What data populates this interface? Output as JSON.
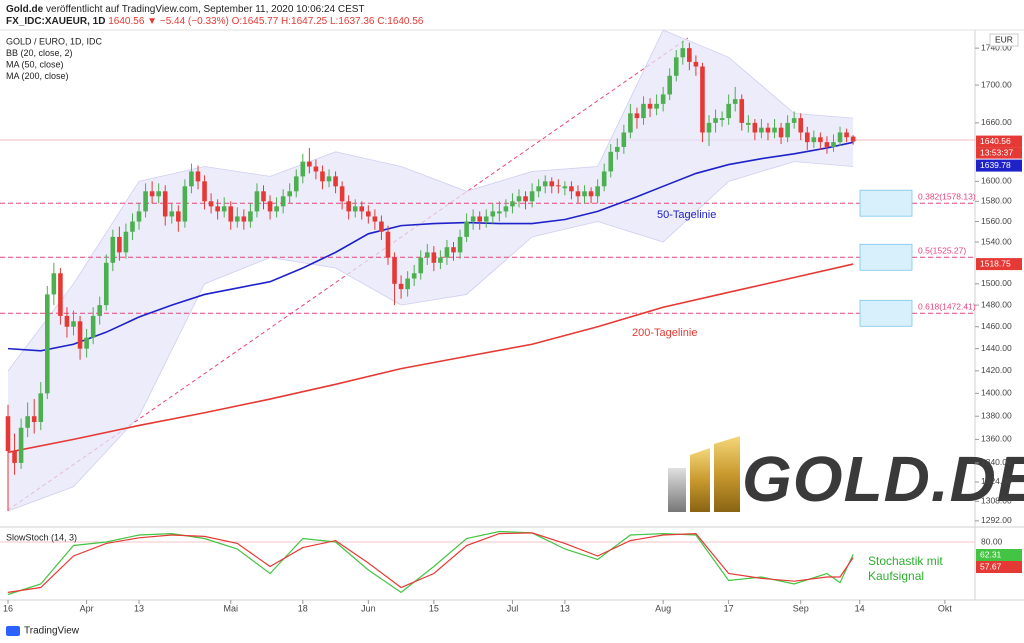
{
  "header": {
    "publisher": "Gold.de",
    "published": "veröffentlicht auf TradingView.com, September 11, 2020 10:06:24 CEST",
    "symbol": "FX_IDC:XAUEUR, 1D",
    "change": "1640.56 ▼ −5.44 (−0.33%)",
    "ohlc": "O:1645.77 H:1647.25 L:1637.36 C:1640.56"
  },
  "footer": "TradingView",
  "logo": "GOLD.DE",
  "chart_data": [
    {
      "type": "candlestick",
      "title": "GOLD / EURO, 1D, IDC",
      "currency": "EUR",
      "countdown": "13:53:37",
      "up_color": "#4caf50",
      "down_color": "#e53935",
      "log": true,
      "grid": false,
      "xlim": [
        -1.22,
        147.6
      ],
      "ylim": [
        1287,
        1760
      ],
      "xticks": [
        {
          "value": 0,
          "label": "16"
        },
        {
          "value": 12,
          "label": "Apr"
        },
        {
          "value": 20,
          "label": "13"
        },
        {
          "value": 34,
          "label": "Mai"
        },
        {
          "value": 45,
          "label": "18"
        },
        {
          "value": 55,
          "label": "Jun"
        },
        {
          "value": 65,
          "label": "15"
        },
        {
          "value": 77,
          "label": "Jul"
        },
        {
          "value": 85,
          "label": "13"
        },
        {
          "value": 100,
          "label": "Aug"
        },
        {
          "value": 110,
          "label": "17"
        },
        {
          "value": 121,
          "label": "Sep"
        },
        {
          "value": 130,
          "label": "14"
        },
        {
          "value": 143,
          "label": "Okt"
        }
      ],
      "yticks": [
        {
          "value": 1740,
          "label": "1740.00"
        },
        {
          "value": 1700,
          "label": "1700.00"
        },
        {
          "value": 1660,
          "label": "1660.00"
        },
        {
          "value": 1600,
          "label": "1600.00"
        },
        {
          "value": 1580,
          "label": "1580.00"
        },
        {
          "value": 1560,
          "label": "1560.00"
        },
        {
          "value": 1540,
          "label": "1540.00"
        },
        {
          "value": 1500,
          "label": "1500.00"
        },
        {
          "value": 1480,
          "label": "1480.00"
        },
        {
          "value": 1460,
          "label": "1460.00"
        },
        {
          "value": 1440,
          "label": "1440.00"
        },
        {
          "value": 1420,
          "label": "1420.00"
        },
        {
          "value": 1400,
          "label": "1400.00"
        },
        {
          "value": 1380,
          "label": "1380.00"
        },
        {
          "value": 1360,
          "label": "1360.00"
        },
        {
          "value": 1340,
          "label": "1340.00"
        },
        {
          "value": 1324,
          "label": "1324.00"
        },
        {
          "value": 1308,
          "label": "1308.00"
        },
        {
          "value": 1292,
          "label": "1292.00"
        }
      ],
      "ohlc": [
        [
          1380,
          1390,
          1300,
          1350
        ],
        [
          1350,
          1365,
          1330,
          1340
        ],
        [
          1340,
          1378,
          1335,
          1370
        ],
        [
          1370,
          1392,
          1362,
          1380
        ],
        [
          1380,
          1395,
          1365,
          1375
        ],
        [
          1375,
          1410,
          1368,
          1400
        ],
        [
          1400,
          1498,
          1395,
          1490
        ],
        [
          1490,
          1520,
          1480,
          1510
        ],
        [
          1510,
          1515,
          1462,
          1470
        ],
        [
          1470,
          1478,
          1450,
          1460
        ],
        [
          1460,
          1475,
          1452,
          1465
        ],
        [
          1465,
          1470,
          1430,
          1440
        ],
        [
          1440,
          1458,
          1432,
          1450
        ],
        [
          1450,
          1478,
          1444,
          1470
        ],
        [
          1470,
          1488,
          1462,
          1480
        ],
        [
          1480,
          1528,
          1475,
          1520
        ],
        [
          1520,
          1552,
          1512,
          1545
        ],
        [
          1545,
          1555,
          1522,
          1530
        ],
        [
          1530,
          1558,
          1524,
          1550
        ],
        [
          1550,
          1568,
          1542,
          1560
        ],
        [
          1560,
          1578,
          1552,
          1570
        ],
        [
          1570,
          1598,
          1564,
          1590
        ],
        [
          1590,
          1600,
          1578,
          1585
        ],
        [
          1585,
          1598,
          1578,
          1590
        ],
        [
          1590,
          1596,
          1556,
          1565
        ],
        [
          1565,
          1578,
          1558,
          1570
        ],
        [
          1570,
          1576,
          1550,
          1560
        ],
        [
          1560,
          1602,
          1554,
          1595
        ],
        [
          1595,
          1618,
          1588,
          1610
        ],
        [
          1610,
          1616,
          1592,
          1600
        ],
        [
          1600,
          1606,
          1572,
          1580
        ],
        [
          1580,
          1588,
          1568,
          1575
        ],
        [
          1575,
          1582,
          1562,
          1570
        ],
        [
          1570,
          1584,
          1564,
          1575
        ],
        [
          1575,
          1580,
          1552,
          1560
        ],
        [
          1560,
          1574,
          1554,
          1565
        ],
        [
          1565,
          1572,
          1552,
          1560
        ],
        [
          1560,
          1578,
          1554,
          1570
        ],
        [
          1570,
          1598,
          1564,
          1590
        ],
        [
          1590,
          1596,
          1572,
          1580
        ],
        [
          1580,
          1586,
          1562,
          1570
        ],
        [
          1570,
          1584,
          1564,
          1575
        ],
        [
          1575,
          1592,
          1568,
          1585
        ],
        [
          1585,
          1598,
          1578,
          1590
        ],
        [
          1590,
          1612,
          1584,
          1605
        ],
        [
          1605,
          1628,
          1598,
          1620
        ],
        [
          1620,
          1634,
          1608,
          1615
        ],
        [
          1615,
          1622,
          1602,
          1610
        ],
        [
          1610,
          1616,
          1592,
          1600
        ],
        [
          1600,
          1612,
          1594,
          1605
        ],
        [
          1605,
          1610,
          1588,
          1595
        ],
        [
          1595,
          1600,
          1572,
          1580
        ],
        [
          1580,
          1586,
          1562,
          1570
        ],
        [
          1570,
          1582,
          1564,
          1575
        ],
        [
          1575,
          1580,
          1562,
          1570
        ],
        [
          1570,
          1576,
          1558,
          1565
        ],
        [
          1565,
          1572,
          1552,
          1560
        ],
        [
          1560,
          1566,
          1542,
          1550
        ],
        [
          1550,
          1556,
          1518,
          1525
        ],
        [
          1525,
          1530,
          1480,
          1500
        ],
        [
          1500,
          1508,
          1486,
          1495
        ],
        [
          1495,
          1512,
          1488,
          1505
        ],
        [
          1505,
          1518,
          1498,
          1510
        ],
        [
          1510,
          1532,
          1504,
          1525
        ],
        [
          1525,
          1538,
          1518,
          1530
        ],
        [
          1530,
          1536,
          1512,
          1520
        ],
        [
          1520,
          1532,
          1514,
          1525
        ],
        [
          1525,
          1542,
          1518,
          1535
        ],
        [
          1535,
          1540,
          1522,
          1530
        ],
        [
          1530,
          1552,
          1524,
          1545
        ],
        [
          1545,
          1568,
          1540,
          1560
        ],
        [
          1560,
          1572,
          1552,
          1565
        ],
        [
          1565,
          1570,
          1552,
          1560
        ],
        [
          1560,
          1572,
          1554,
          1565
        ],
        [
          1565,
          1578,
          1558,
          1570
        ],
        [
          1568,
          1580,
          1560,
          1570
        ],
        [
          1570,
          1582,
          1564,
          1575
        ],
        [
          1575,
          1588,
          1568,
          1580
        ],
        [
          1580,
          1592,
          1574,
          1585
        ],
        [
          1585,
          1590,
          1572,
          1580
        ],
        [
          1580,
          1598,
          1574,
          1590
        ],
        [
          1590,
          1602,
          1584,
          1595
        ],
        [
          1595,
          1606,
          1588,
          1600
        ],
        [
          1600,
          1604,
          1588,
          1595
        ],
        [
          1596,
          1602,
          1588,
          1595
        ],
        [
          1593,
          1600,
          1586,
          1595
        ],
        [
          1595,
          1600,
          1582,
          1590
        ],
        [
          1590,
          1596,
          1578,
          1585
        ],
        [
          1585,
          1596,
          1578,
          1590
        ],
        [
          1590,
          1594,
          1578,
          1585
        ],
        [
          1585,
          1602,
          1578,
          1595
        ],
        [
          1595,
          1618,
          1590,
          1610
        ],
        [
          1610,
          1638,
          1604,
          1630
        ],
        [
          1630,
          1644,
          1622,
          1635
        ],
        [
          1635,
          1658,
          1628,
          1650
        ],
        [
          1650,
          1680,
          1644,
          1670
        ],
        [
          1670,
          1676,
          1654,
          1665
        ],
        [
          1665,
          1688,
          1658,
          1680
        ],
        [
          1680,
          1686,
          1666,
          1675
        ],
        [
          1675,
          1690,
          1668,
          1680
        ],
        [
          1680,
          1698,
          1672,
          1690
        ],
        [
          1690,
          1718,
          1684,
          1710
        ],
        [
          1710,
          1738,
          1704,
          1730
        ],
        [
          1730,
          1748,
          1722,
          1740
        ],
        [
          1740,
          1746,
          1716,
          1725
        ],
        [
          1725,
          1732,
          1710,
          1720
        ],
        [
          1720,
          1724,
          1640,
          1650
        ],
        [
          1650,
          1668,
          1636,
          1660
        ],
        [
          1660,
          1674,
          1650,
          1665
        ],
        [
          1663,
          1672,
          1656,
          1665
        ],
        [
          1665,
          1690,
          1658,
          1680
        ],
        [
          1680,
          1698,
          1672,
          1685
        ],
        [
          1685,
          1690,
          1652,
          1660
        ],
        [
          1658,
          1668,
          1650,
          1660
        ],
        [
          1660,
          1664,
          1642,
          1650
        ],
        [
          1650,
          1664,
          1644,
          1655
        ],
        [
          1655,
          1660,
          1642,
          1650
        ],
        [
          1650,
          1664,
          1644,
          1655
        ],
        [
          1655,
          1660,
          1638,
          1645
        ],
        [
          1645,
          1668,
          1640,
          1660
        ],
        [
          1660,
          1672,
          1654,
          1665
        ],
        [
          1665,
          1670,
          1642,
          1650
        ],
        [
          1650,
          1656,
          1632,
          1640
        ],
        [
          1640,
          1652,
          1634,
          1645
        ],
        [
          1645,
          1650,
          1632,
          1640
        ],
        [
          1640,
          1646,
          1628,
          1635
        ],
        [
          1635,
          1648,
          1630,
          1640
        ],
        [
          1640,
          1656,
          1636,
          1650
        ],
        [
          1650,
          1654,
          1640,
          1645
        ],
        [
          1645.77,
          1647.25,
          1637.36,
          1640.56
        ]
      ],
      "bands": {
        "name": "BB (20, close, 2)",
        "color": "#e6e6fa",
        "x": [
          0,
          10,
          20,
          30,
          40,
          50,
          60,
          70,
          80,
          90,
          100,
          110,
          120,
          129
        ],
        "upper": [
          1420,
          1500,
          1600,
          1615,
          1605,
          1630,
          1615,
          1590,
          1610,
          1615,
          1760,
          1730,
          1670,
          1665
        ],
        "lower": [
          1300,
          1320,
          1380,
          1500,
          1525,
          1515,
          1480,
          1490,
          1545,
          1560,
          1540,
          1600,
          1620,
          1615
        ]
      },
      "lines": [
        {
          "name": "MA (200, close)",
          "color": "#e53935",
          "x": [
            0,
            10,
            20,
            30,
            40,
            50,
            60,
            70,
            80,
            90,
            100,
            110,
            120,
            129
          ],
          "values": [
            1349,
            1360,
            1372,
            1383,
            1395,
            1408,
            1422,
            1433,
            1444,
            1460,
            1478,
            1492,
            1506,
            1518.75
          ]
        },
        {
          "name": "MA (50, close)",
          "color": "#1e22c8",
          "x": [
            0,
            5,
            10,
            15,
            20,
            25,
            30,
            35,
            40,
            45,
            50,
            55,
            60,
            65,
            70,
            75,
            80,
            85,
            90,
            95,
            100,
            105,
            110,
            115,
            120,
            125,
            129
          ],
          "values": [
            1440,
            1438,
            1444,
            1455,
            1469,
            1480,
            1490,
            1496,
            1502,
            1515,
            1530,
            1548,
            1556,
            1558,
            1559,
            1558,
            1558,
            1562,
            1570,
            1582,
            1595,
            1608,
            1617,
            1623,
            1628,
            1634,
            1639.78
          ]
        }
      ],
      "fib": [
        {
          "value": 1578.13,
          "label": "0.382(1578.13)"
        },
        {
          "value": 1525.27,
          "label": "0.5(1525.27)"
        },
        {
          "value": 1472.41,
          "label": "0.618(1472.41)"
        }
      ],
      "annotations": [
        {
          "text": "50-Tagelinie",
          "color": "#1e22c8"
        },
        {
          "text": "200-Tagelinie",
          "color": "#e53935"
        }
      ]
    },
    {
      "type": "line",
      "title": "SlowStoch (14, 3)",
      "xlim": [
        -1.22,
        147.6
      ],
      "ylim": [
        0,
        100
      ],
      "yticks": [
        {
          "value": 80,
          "label": "80.00"
        }
      ],
      "x": [
        0,
        5,
        10,
        15,
        20,
        25,
        30,
        35,
        40,
        45,
        50,
        55,
        60,
        65,
        70,
        75,
        80,
        85,
        90,
        95,
        100,
        105,
        110,
        115,
        120,
        125,
        127,
        129
      ],
      "series": [
        {
          "color": "#43c443",
          "values": [
            5,
            20,
            75,
            80,
            90,
            92,
            85,
            70,
            35,
            85,
            80,
            40,
            8,
            45,
            85,
            95,
            93,
            70,
            55,
            90,
            92,
            90,
            25,
            30,
            20,
            35,
            22,
            62.31
          ]
        },
        {
          "color": "#e53935",
          "values": [
            8,
            15,
            60,
            78,
            86,
            90,
            88,
            78,
            45,
            72,
            82,
            50,
            15,
            35,
            75,
            92,
            93,
            78,
            60,
            82,
            90,
            92,
            35,
            28,
            24,
            30,
            30,
            57.67
          ]
        }
      ],
      "annotation": [
        "Stochastik mit",
        "Kaufsignal"
      ]
    }
  ]
}
